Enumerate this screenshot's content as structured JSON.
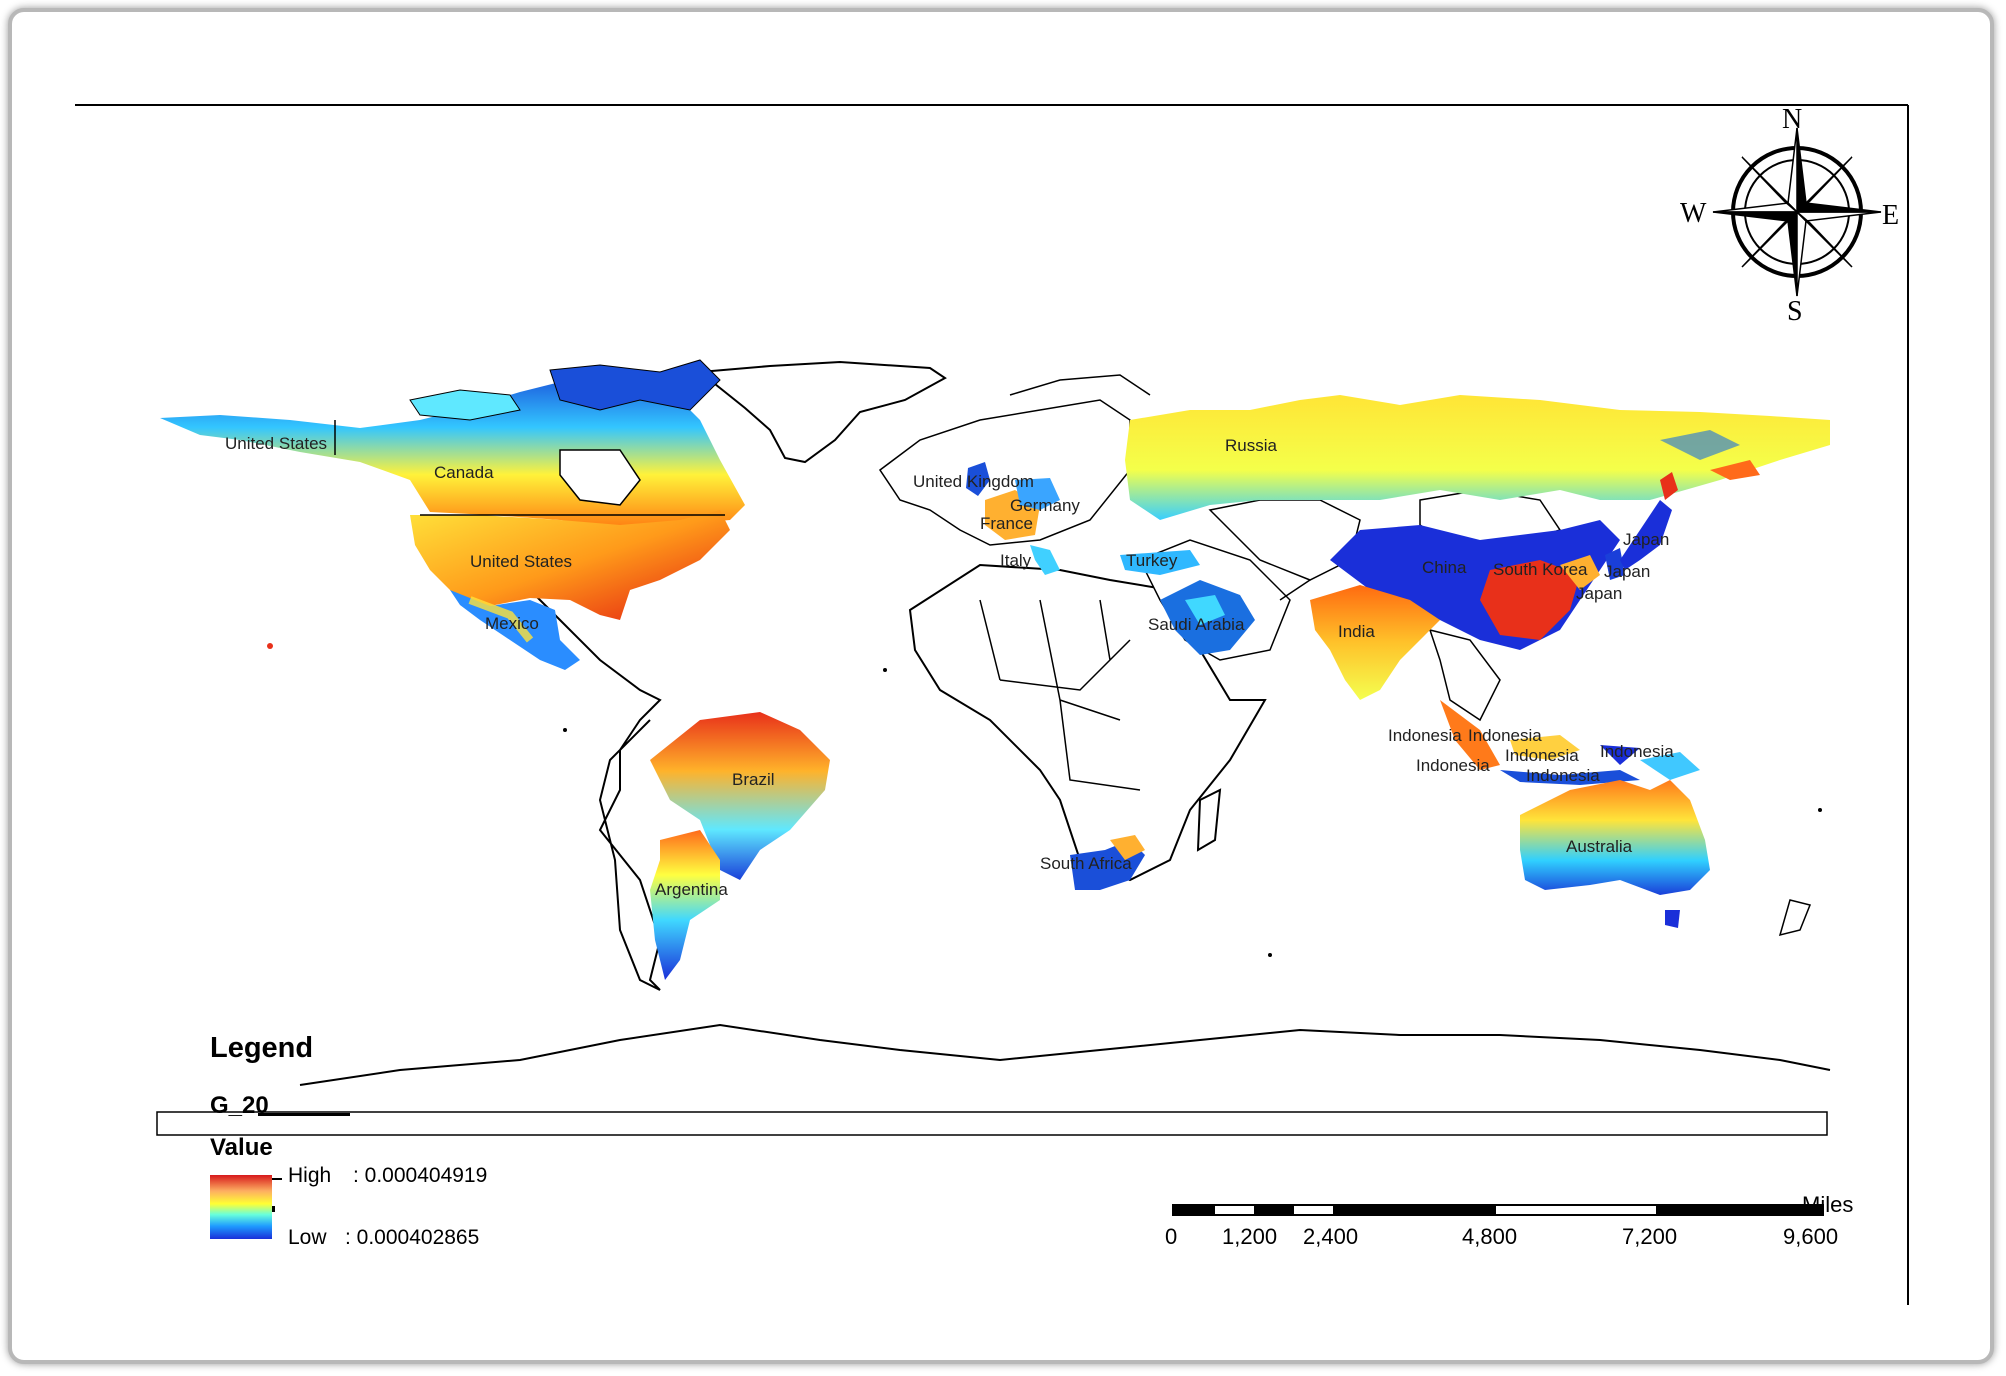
{
  "compass": {
    "north": "N",
    "south": "S",
    "east": "E",
    "west": "W"
  },
  "countries": [
    "United States",
    "Canada",
    "United States",
    "Mexico",
    "Brazil",
    "Argentina",
    "United Kingdom",
    "France",
    "Germany",
    "Italy",
    "Turkey",
    "Saudi Arabia",
    "South Africa",
    "Russia",
    "China",
    "South Korea",
    "Japan",
    "Japan",
    "Japan",
    "India",
    "Indonesia",
    "Indonesia",
    "Indonesia",
    "Indonesia",
    "Indonesia",
    "Indonesia",
    "Australia"
  ],
  "legend": {
    "title": "Legend",
    "layer": "G_20",
    "field": "Value",
    "high_label": "High",
    "high_value": ": 0.000404919",
    "low_label": "Low",
    "low_value": ": 0.000402865",
    "colors": {
      "high": "#d7191c",
      "mid": "#ffff33",
      "low": "#1a2fd9"
    }
  },
  "scale_bar": {
    "unit": "Miles",
    "ticks": [
      "0",
      "1,200",
      "2,400",
      "4,800",
      "7,200",
      "9,600"
    ]
  }
}
